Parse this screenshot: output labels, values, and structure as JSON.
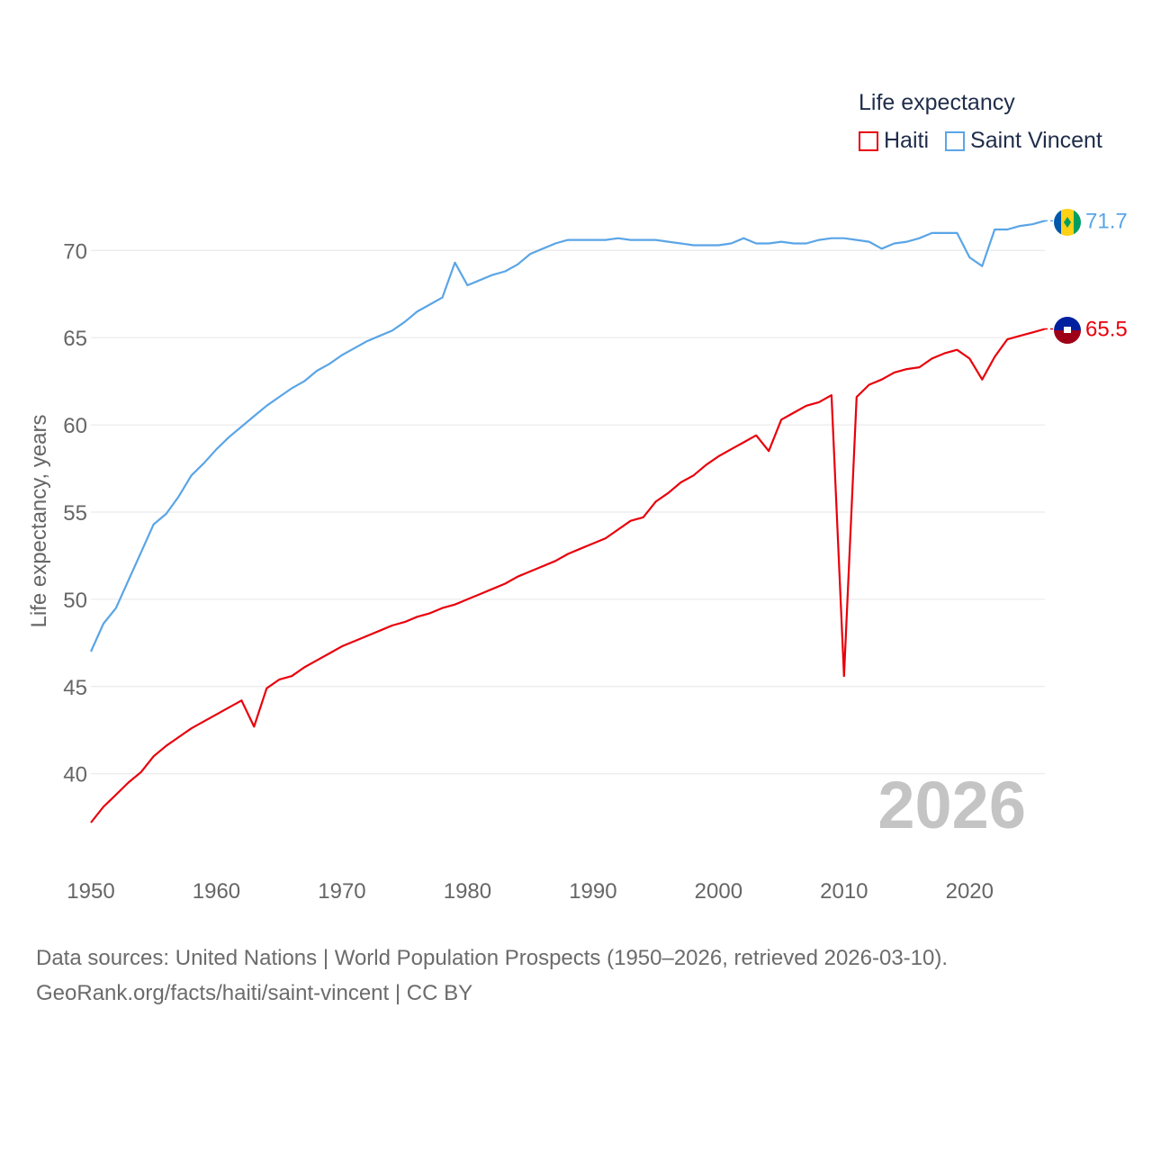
{
  "legend": {
    "title": "Life expectancy",
    "items": [
      {
        "label": "Haiti",
        "color": "#e8000b"
      },
      {
        "label": "Saint Vincent",
        "color": "#5aa5e6"
      }
    ]
  },
  "footer": {
    "line1": "Data sources: United Nations | World Population Prospects (1950–2026, retrieved 2026-03-10).",
    "line2": "GeoRank.org/facts/haiti/saint-vincent | CC BY"
  },
  "chart_data": {
    "type": "line",
    "title": "Life expectancy",
    "xlabel": "",
    "ylabel": "Life expectancy, years",
    "xlim": [
      1950,
      2026
    ],
    "ylim": [
      35.6,
      72.8
    ],
    "yticks": [
      40,
      45,
      50,
      55,
      60,
      65,
      70
    ],
    "xticks": [
      1950,
      1960,
      1970,
      1980,
      1990,
      2000,
      2010,
      2020
    ],
    "grid": true,
    "year_watermark": "2026",
    "x": [
      1950,
      1951,
      1952,
      1953,
      1954,
      1955,
      1956,
      1957,
      1958,
      1959,
      1960,
      1961,
      1962,
      1963,
      1964,
      1965,
      1966,
      1967,
      1968,
      1969,
      1970,
      1971,
      1972,
      1973,
      1974,
      1975,
      1976,
      1977,
      1978,
      1979,
      1980,
      1981,
      1982,
      1983,
      1984,
      1985,
      1986,
      1987,
      1988,
      1989,
      1990,
      1991,
      1992,
      1993,
      1994,
      1995,
      1996,
      1997,
      1998,
      1999,
      2000,
      2001,
      2002,
      2003,
      2004,
      2005,
      2006,
      2007,
      2008,
      2009,
      2010,
      2011,
      2012,
      2013,
      2014,
      2015,
      2016,
      2017,
      2018,
      2019,
      2020,
      2021,
      2022,
      2023,
      2024,
      2025,
      2026
    ],
    "series": [
      {
        "name": "Haiti",
        "color": "#e8000b",
        "end_label": "65.5",
        "values": [
          37.2,
          38.1,
          38.8,
          39.5,
          40.1,
          41.0,
          41.6,
          42.1,
          42.6,
          43.0,
          43.4,
          43.8,
          44.2,
          42.7,
          44.9,
          45.4,
          45.6,
          46.1,
          46.5,
          46.9,
          47.3,
          47.6,
          47.9,
          48.2,
          48.5,
          48.7,
          49.0,
          49.2,
          49.5,
          49.7,
          50.0,
          50.3,
          50.6,
          50.9,
          51.3,
          51.6,
          51.9,
          52.2,
          52.6,
          52.9,
          53.2,
          53.5,
          54.0,
          54.5,
          54.7,
          55.6,
          56.1,
          56.7,
          57.1,
          57.7,
          58.2,
          58.6,
          59.0,
          59.4,
          58.5,
          60.3,
          60.7,
          61.1,
          61.3,
          61.7,
          45.6,
          61.6,
          62.3,
          62.6,
          63.0,
          63.2,
          63.3,
          63.8,
          64.1,
          64.3,
          63.8,
          62.6,
          63.9,
          64.9,
          65.1,
          65.3,
          65.5
        ]
      },
      {
        "name": "Saint Vincent",
        "color": "#5aa5e6",
        "end_label": "71.7",
        "values": [
          47.0,
          48.6,
          49.5,
          51.1,
          52.7,
          54.3,
          54.9,
          55.9,
          57.1,
          57.8,
          58.6,
          59.3,
          59.9,
          60.5,
          61.1,
          61.6,
          62.1,
          62.5,
          63.1,
          63.5,
          64.0,
          64.4,
          64.8,
          65.1,
          65.4,
          65.9,
          66.5,
          66.9,
          67.3,
          69.3,
          68.0,
          68.3,
          68.6,
          68.8,
          69.2,
          69.8,
          70.1,
          70.4,
          70.6,
          70.6,
          70.6,
          70.6,
          70.7,
          70.6,
          70.6,
          70.6,
          70.5,
          70.4,
          70.3,
          70.3,
          70.3,
          70.4,
          70.7,
          70.4,
          70.4,
          70.5,
          70.4,
          70.4,
          70.6,
          70.7,
          70.7,
          70.6,
          70.5,
          70.1,
          70.4,
          70.5,
          70.7,
          71.0,
          71.0,
          71.0,
          69.6,
          69.1,
          71.2,
          71.2,
          71.4,
          71.5,
          71.7
        ]
      }
    ]
  }
}
